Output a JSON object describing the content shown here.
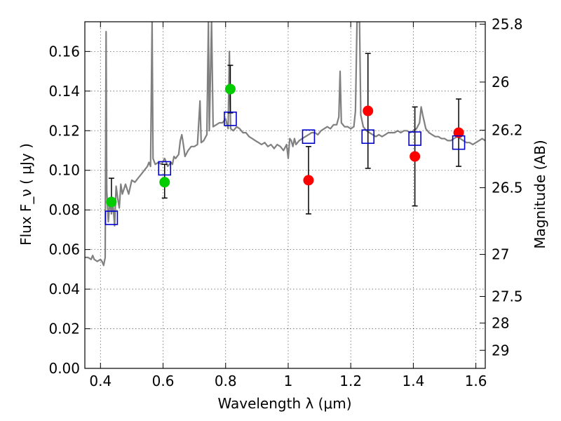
{
  "chart_data": {
    "type": "scatter",
    "xlabel": "Wavelength  λ (μm)",
    "ylabel": "Flux  F_ν  ( μJy )",
    "y2label": "Magnitude (AB)",
    "xlim": [
      0.35,
      1.63
    ],
    "ylim": [
      0.0,
      0.175
    ],
    "grid": true,
    "x_ticks": [
      "0.4",
      "0.6",
      "0.8",
      "1",
      "1.2",
      "1.4",
      "1.6"
    ],
    "x_tick_values": [
      0.4,
      0.6,
      0.8,
      1.0,
      1.2,
      1.4,
      1.6
    ],
    "y_ticks": [
      "0.00",
      "0.02",
      "0.04",
      "0.06",
      "0.08",
      "0.10",
      "0.12",
      "0.14",
      "0.16"
    ],
    "y_tick_values": [
      0.0,
      0.02,
      0.04,
      0.06,
      0.08,
      0.1,
      0.12,
      0.14,
      0.16
    ],
    "mag_ticks": [
      "25.8",
      "26",
      "26.2",
      "26.5",
      "27",
      "27.5",
      "28",
      "29"
    ],
    "mag_tick_values": [
      25.8,
      26.0,
      26.2,
      26.5,
      27.0,
      27.5,
      28.0,
      29.0
    ],
    "colors": {
      "spectrum": "#808080",
      "model_box": "#0000cc",
      "green_point": "#00cc00",
      "red_point": "#ff0000",
      "error_bar": "#000000",
      "grid": "#b0b0b0"
    },
    "spectrum": {
      "points": [
        [
          0.35,
          0.056
        ],
        [
          0.36,
          0.056
        ],
        [
          0.37,
          0.055
        ],
        [
          0.375,
          0.057
        ],
        [
          0.38,
          0.055
        ],
        [
          0.39,
          0.054
        ],
        [
          0.4,
          0.055
        ],
        [
          0.405,
          0.054
        ],
        [
          0.41,
          0.052
        ],
        [
          0.415,
          0.056
        ],
        [
          0.418,
          0.17
        ],
        [
          0.42,
          0.09
        ],
        [
          0.425,
          0.074
        ],
        [
          0.43,
          0.085
        ],
        [
          0.435,
          0.078
        ],
        [
          0.44,
          0.083
        ],
        [
          0.445,
          0.072
        ],
        [
          0.45,
          0.092
        ],
        [
          0.455,
          0.086
        ],
        [
          0.46,
          0.081
        ],
        [
          0.465,
          0.093
        ],
        [
          0.47,
          0.088
        ],
        [
          0.48,
          0.093
        ],
        [
          0.49,
          0.088
        ],
        [
          0.5,
          0.095
        ],
        [
          0.51,
          0.094
        ],
        [
          0.52,
          0.096
        ],
        [
          0.53,
          0.098
        ],
        [
          0.54,
          0.1
        ],
        [
          0.55,
          0.102
        ],
        [
          0.555,
          0.104
        ],
        [
          0.56,
          0.102
        ],
        [
          0.565,
          0.175
        ],
        [
          0.568,
          0.106
        ],
        [
          0.575,
          0.103
        ],
        [
          0.585,
          0.104
        ],
        [
          0.595,
          0.103
        ],
        [
          0.605,
          0.106
        ],
        [
          0.615,
          0.102
        ],
        [
          0.625,
          0.104
        ],
        [
          0.63,
          0.103
        ],
        [
          0.635,
          0.107
        ],
        [
          0.64,
          0.106
        ],
        [
          0.65,
          0.108
        ],
        [
          0.655,
          0.115
        ],
        [
          0.66,
          0.118
        ],
        [
          0.665,
          0.113
        ],
        [
          0.67,
          0.107
        ],
        [
          0.68,
          0.11
        ],
        [
          0.69,
          0.112
        ],
        [
          0.7,
          0.112
        ],
        [
          0.71,
          0.113
        ],
        [
          0.718,
          0.135
        ],
        [
          0.722,
          0.114
        ],
        [
          0.73,
          0.115
        ],
        [
          0.74,
          0.118
        ],
        [
          0.745,
          0.175
        ],
        [
          0.748,
          0.12
        ],
        [
          0.755,
          0.175
        ],
        [
          0.76,
          0.122
        ],
        [
          0.77,
          0.123
        ],
        [
          0.78,
          0.124
        ],
        [
          0.79,
          0.124
        ],
        [
          0.8,
          0.126
        ],
        [
          0.808,
          0.121
        ],
        [
          0.812,
          0.16
        ],
        [
          0.816,
          0.121
        ],
        [
          0.825,
          0.12
        ],
        [
          0.835,
          0.122
        ],
        [
          0.845,
          0.121
        ],
        [
          0.855,
          0.119
        ],
        [
          0.865,
          0.119
        ],
        [
          0.875,
          0.117
        ],
        [
          0.885,
          0.116
        ],
        [
          0.895,
          0.115
        ],
        [
          0.905,
          0.114
        ],
        [
          0.915,
          0.113
        ],
        [
          0.925,
          0.114
        ],
        [
          0.935,
          0.112
        ],
        [
          0.945,
          0.113
        ],
        [
          0.955,
          0.111
        ],
        [
          0.965,
          0.113
        ],
        [
          0.975,
          0.112
        ],
        [
          0.985,
          0.11
        ],
        [
          0.995,
          0.113
        ],
        [
          1.0,
          0.106
        ],
        [
          1.005,
          0.116
        ],
        [
          1.01,
          0.115
        ],
        [
          1.015,
          0.112
        ],
        [
          1.02,
          0.116
        ],
        [
          1.025,
          0.113
        ],
        [
          1.035,
          0.115
        ],
        [
          1.045,
          0.116
        ],
        [
          1.055,
          0.117
        ],
        [
          1.065,
          0.118
        ],
        [
          1.075,
          0.119
        ],
        [
          1.085,
          0.119
        ],
        [
          1.095,
          0.118
        ],
        [
          1.105,
          0.12
        ],
        [
          1.115,
          0.121
        ],
        [
          1.125,
          0.122
        ],
        [
          1.135,
          0.121
        ],
        [
          1.145,
          0.123
        ],
        [
          1.155,
          0.123
        ],
        [
          1.162,
          0.127
        ],
        [
          1.166,
          0.15
        ],
        [
          1.17,
          0.124
        ],
        [
          1.18,
          0.122
        ],
        [
          1.19,
          0.122
        ],
        [
          1.2,
          0.121
        ],
        [
          1.21,
          0.122
        ],
        [
          1.215,
          0.13
        ],
        [
          1.22,
          0.175
        ],
        [
          1.228,
          0.175
        ],
        [
          1.232,
          0.128
        ],
        [
          1.24,
          0.122
        ],
        [
          1.25,
          0.12
        ],
        [
          1.26,
          0.119
        ],
        [
          1.27,
          0.118
        ],
        [
          1.28,
          0.117
        ],
        [
          1.29,
          0.118
        ],
        [
          1.3,
          0.117
        ],
        [
          1.31,
          0.118
        ],
        [
          1.32,
          0.119
        ],
        [
          1.33,
          0.119
        ],
        [
          1.34,
          0.119
        ],
        [
          1.35,
          0.12
        ],
        [
          1.36,
          0.119
        ],
        [
          1.37,
          0.12
        ],
        [
          1.38,
          0.12
        ],
        [
          1.39,
          0.119
        ],
        [
          1.4,
          0.12
        ],
        [
          1.41,
          0.121
        ],
        [
          1.42,
          0.124
        ],
        [
          1.425,
          0.132
        ],
        [
          1.43,
          0.128
        ],
        [
          1.44,
          0.121
        ],
        [
          1.45,
          0.119
        ],
        [
          1.46,
          0.118
        ],
        [
          1.47,
          0.117
        ],
        [
          1.48,
          0.117
        ],
        [
          1.49,
          0.116
        ],
        [
          1.5,
          0.116
        ],
        [
          1.51,
          0.115
        ],
        [
          1.52,
          0.115
        ],
        [
          1.53,
          0.116
        ],
        [
          1.54,
          0.117
        ],
        [
          1.55,
          0.116
        ],
        [
          1.56,
          0.115
        ],
        [
          1.57,
          0.114
        ],
        [
          1.58,
          0.114
        ],
        [
          1.59,
          0.113
        ],
        [
          1.6,
          0.114
        ],
        [
          1.61,
          0.115
        ],
        [
          1.62,
          0.116
        ],
        [
          1.63,
          0.115
        ]
      ]
    },
    "model_boxes": [
      {
        "x": 0.435,
        "y": 0.076
      },
      {
        "x": 0.605,
        "y": 0.101
      },
      {
        "x": 0.815,
        "y": 0.126
      },
      {
        "x": 1.065,
        "y": 0.117
      },
      {
        "x": 1.255,
        "y": 0.117
      },
      {
        "x": 1.405,
        "y": 0.116
      },
      {
        "x": 1.545,
        "y": 0.114
      }
    ],
    "observed_points": [
      {
        "x": 0.435,
        "y": 0.084,
        "err_low": 0.084,
        "err_high": 0.096,
        "color": "green"
      },
      {
        "x": 0.605,
        "y": 0.094,
        "err_low": 0.086,
        "err_high": 0.103,
        "color": "green"
      },
      {
        "x": 0.815,
        "y": 0.141,
        "err_low": 0.129,
        "err_high": 0.153,
        "color": "green"
      },
      {
        "x": 1.065,
        "y": 0.095,
        "err_low": 0.078,
        "err_high": 0.112,
        "color": "red"
      },
      {
        "x": 1.255,
        "y": 0.13,
        "err_low": 0.101,
        "err_high": 0.159,
        "color": "red"
      },
      {
        "x": 1.405,
        "y": 0.107,
        "err_low": 0.082,
        "err_high": 0.132,
        "color": "red"
      },
      {
        "x": 1.545,
        "y": 0.119,
        "err_low": 0.102,
        "err_high": 0.136,
        "color": "red"
      }
    ]
  }
}
